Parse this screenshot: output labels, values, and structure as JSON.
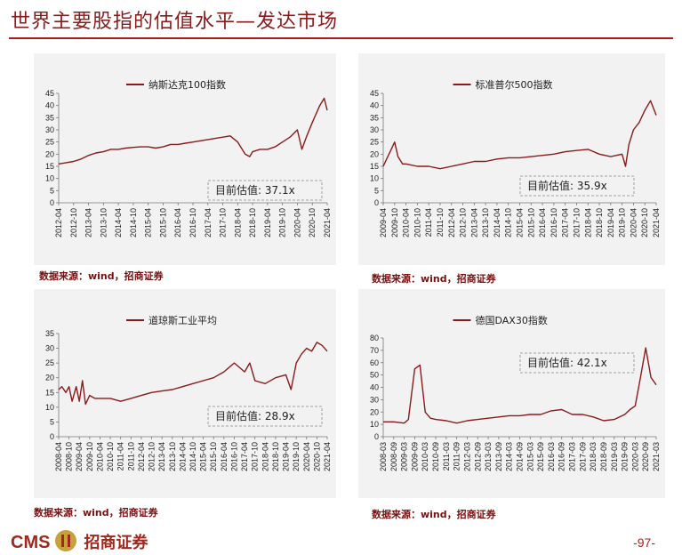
{
  "page": {
    "title": "世界主要股指的估值水平—发达市场",
    "page_number": "-97-",
    "logo_text": "CMS",
    "logo_cn": "招商证券"
  },
  "colors": {
    "accent": "#8b1a1a",
    "line": "#8b1a1a",
    "panel_bg": "#f2f2f2"
  },
  "sources": [
    "数据来源：wind，招商证券",
    "数据来源：wind，招商证券",
    "数据来源：wind，招商证券",
    "数据来源：wind，招商证券"
  ],
  "chart_data": [
    {
      "type": "line",
      "legend": "纳斯达克100指数",
      "annotation": "目前估值:   37.1x",
      "ylim": [
        0,
        45
      ],
      "yticks": [
        "0",
        "5",
        "10",
        "15",
        "20",
        "25",
        "30",
        "35",
        "40",
        "45"
      ],
      "xticks": [
        "2012-04",
        "2012-10",
        "2013-04",
        "2013-10",
        "2014-04",
        "2014-10",
        "2015-04",
        "2015-10",
        "2016-04",
        "2016-10",
        "2017-04",
        "2017-10",
        "2018-04",
        "2018-10",
        "2019-04",
        "2019-10",
        "2020-04",
        "2020-10",
        "2021-04"
      ],
      "x": [
        0,
        0.5,
        1,
        1.5,
        2,
        2.5,
        3,
        3.5,
        4,
        4.5,
        5,
        5.5,
        6,
        6.5,
        7,
        7.5,
        8,
        8.5,
        9,
        9.5,
        10,
        10.5,
        11,
        11.5,
        12,
        12.5,
        12.8,
        13,
        13.5,
        14,
        14.5,
        15,
        15.5,
        16,
        16.3,
        16.6,
        17,
        17.5,
        17.8,
        18
      ],
      "values": [
        16,
        16.5,
        17,
        18,
        19.5,
        20.5,
        21,
        22,
        22,
        22.5,
        22.8,
        23,
        23,
        22.5,
        23,
        24,
        24,
        24.5,
        25,
        25.5,
        26,
        26.5,
        27,
        27.5,
        25,
        20,
        19,
        21,
        22,
        22,
        23,
        25,
        27,
        30,
        22,
        27,
        33,
        40,
        43,
        38
      ]
    },
    {
      "type": "line",
      "legend": "标准普尔500指数",
      "annotation": "目前估值:   35.9x",
      "ylim": [
        0,
        45
      ],
      "yticks": [
        "0",
        "5",
        "10",
        "15",
        "20",
        "25",
        "30",
        "35",
        "40",
        "45"
      ],
      "xticks": [
        "2009-04",
        "2009-10",
        "2010-04",
        "2010-10",
        "2011-04",
        "2011-10",
        "2012-04",
        "2012-10",
        "2013-04",
        "2013-10",
        "2014-04",
        "2014-10",
        "2015-04",
        "2015-10",
        "2016-04",
        "2016-10",
        "2017-04",
        "2017-10",
        "2018-04",
        "2018-10",
        "2019-04",
        "2019-10",
        "2020-04",
        "2020-10",
        "2021-04"
      ],
      "x": [
        0,
        0.3,
        0.7,
        1,
        1.3,
        1.7,
        2,
        3,
        4,
        5,
        6,
        7,
        8,
        9,
        10,
        11,
        12,
        13,
        14,
        15,
        16,
        17,
        18,
        19,
        20,
        21,
        21.3,
        21.6,
        22,
        22.5,
        23,
        23.5,
        24
      ],
      "values": [
        15,
        18,
        22,
        25,
        19,
        16,
        16,
        15,
        15,
        14,
        15,
        16,
        17,
        17,
        18,
        18.5,
        18.5,
        19,
        19.5,
        20,
        21,
        21.5,
        22,
        20,
        19,
        20,
        15,
        24,
        30,
        33,
        38,
        42,
        36
      ]
    },
    {
      "type": "line",
      "legend": "道琼斯工业平均",
      "annotation": "目前估值:   28.9x",
      "ylim": [
        0,
        35
      ],
      "yticks": [
        "0",
        "5",
        "10",
        "15",
        "20",
        "25",
        "30",
        "35"
      ],
      "xticks": [
        "2008-04",
        "2008-10",
        "2009-04",
        "2009-10",
        "2010-04",
        "2010-10",
        "2011-04",
        "2011-10",
        "2012-04",
        "2012-10",
        "2013-04",
        "2013-10",
        "2014-04",
        "2014-10",
        "2015-04",
        "2015-10",
        "2016-04",
        "2016-10",
        "2017-04",
        "2017-10",
        "2018-04",
        "2018-10",
        "2019-04",
        "2019-10",
        "2020-04",
        "2020-10",
        "2021-04"
      ],
      "x": [
        0,
        0.3,
        0.7,
        1,
        1.3,
        1.7,
        2,
        2.3,
        2.6,
        3,
        3.5,
        4,
        5,
        6,
        7,
        8,
        9,
        10,
        11,
        12,
        13,
        14,
        15,
        16,
        17,
        18,
        18.5,
        19,
        20,
        21,
        22,
        22.5,
        23,
        23.5,
        24,
        24.5,
        25,
        25.5,
        26
      ],
      "values": [
        16,
        17,
        15,
        17,
        12,
        17,
        12,
        19,
        11,
        14,
        13,
        13,
        13,
        12,
        13,
        14,
        15,
        15.5,
        16,
        17,
        18,
        19,
        20,
        22,
        25,
        22,
        25,
        19,
        18,
        20,
        21,
        16,
        25,
        28,
        30,
        29,
        32,
        31,
        29
      ]
    },
    {
      "type": "line",
      "legend": "德国DAX30指数",
      "annotation": "目前估值:   42.1x",
      "ylim": [
        0,
        80
      ],
      "yticks": [
        "0",
        "10",
        "20",
        "30",
        "40",
        "50",
        "60",
        "70",
        "80"
      ],
      "xticks": [
        "2008-03",
        "2008-09",
        "2009-03",
        "2009-09",
        "2010-03",
        "2010-09",
        "2011-03",
        "2011-09",
        "2012-03",
        "2012-09",
        "2013-03",
        "2013-09",
        "2014-03",
        "2014-09",
        "2015-03",
        "2015-09",
        "2016-03",
        "2016-09",
        "2017-03",
        "2017-09",
        "2018-03",
        "2018-09",
        "2019-03",
        "2019-09",
        "2020-03",
        "2020-09",
        "2021-03"
      ],
      "x": [
        0,
        1,
        2,
        2.4,
        3,
        3.5,
        4,
        4.5,
        5,
        6,
        7,
        8,
        9,
        10,
        11,
        12,
        13,
        14,
        15,
        16,
        17,
        18,
        19,
        20,
        21,
        22,
        23,
        23.5,
        24,
        24.5,
        25,
        25.5,
        26
      ],
      "values": [
        12,
        12,
        11,
        14,
        55,
        58,
        20,
        15,
        14,
        13,
        11,
        13,
        14,
        15,
        16,
        17,
        17,
        18,
        18,
        21,
        22,
        18,
        18,
        16,
        13,
        14,
        18,
        22,
        25,
        48,
        72,
        48,
        42
      ]
    }
  ]
}
